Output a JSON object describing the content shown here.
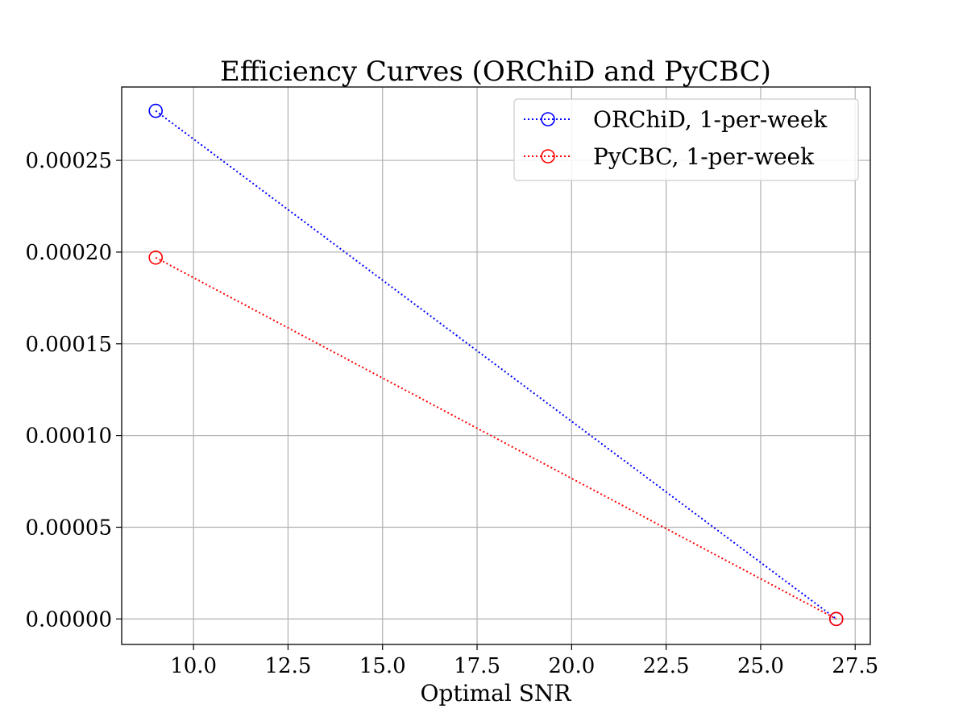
{
  "chart_data": {
    "type": "line",
    "title": "Efficiency Curves (ORChiD and PyCBC)",
    "xlabel": "Optimal SNR",
    "ylabel": "",
    "xlim": [
      8.1,
      27.9
    ],
    "ylim": [
      -1.39e-05,
      0.00029
    ],
    "x_ticks": [
      10.0,
      12.5,
      15.0,
      17.5,
      20.0,
      22.5,
      25.0,
      27.5
    ],
    "x_tick_labels": [
      "10.0",
      "12.5",
      "15.0",
      "17.5",
      "20.0",
      "22.5",
      "25.0",
      "27.5"
    ],
    "y_ticks": [
      0.0,
      5e-05,
      0.0001,
      0.00015,
      0.0002,
      0.00025
    ],
    "y_tick_labels": [
      "0.00000",
      "0.00005",
      "0.00010",
      "0.00015",
      "0.00020",
      "0.00025"
    ],
    "grid": true,
    "legend_position": "top-right",
    "series": [
      {
        "name": "ORChiD, 1-per-week",
        "color": "#0000ff",
        "line_style": "dotted",
        "marker": "open-circle",
        "x": [
          9.0,
          27.0
        ],
        "y": [
          0.000277,
          0.0
        ]
      },
      {
        "name": "PyCBC, 1-per-week",
        "color": "#ff0000",
        "line_style": "dotted",
        "marker": "open-circle",
        "x": [
          9.0,
          27.0
        ],
        "y": [
          0.000197,
          0.0
        ]
      }
    ]
  }
}
